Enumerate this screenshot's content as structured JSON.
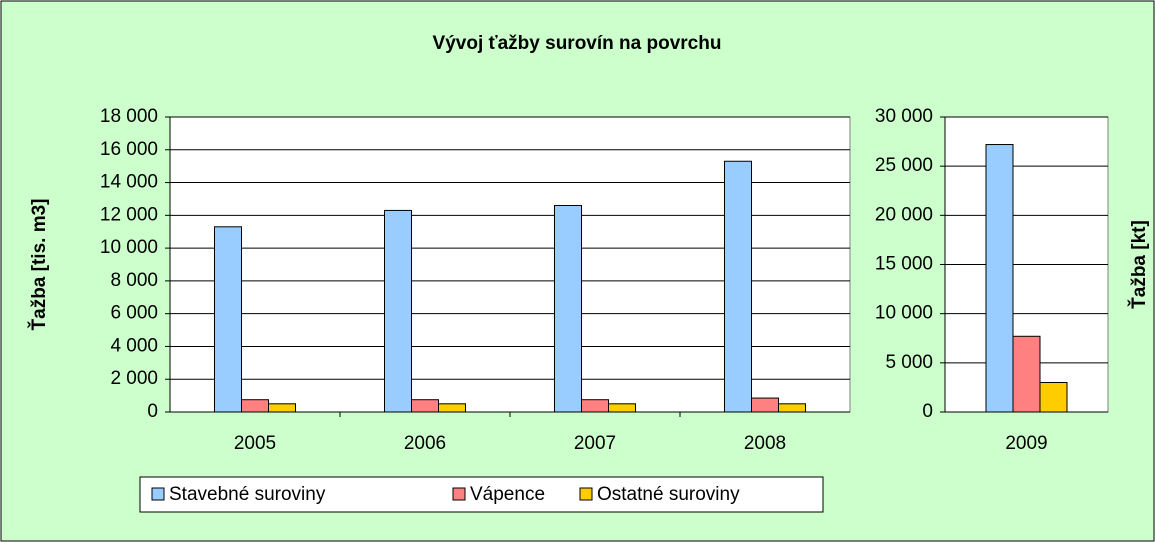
{
  "chart_data": [
    {
      "type": "bar",
      "title": "Vývoj ťažby surovín na povrchu",
      "ylabel": "Ťažba [tis. m3]",
      "categories": [
        "2005",
        "2006",
        "2007",
        "2008"
      ],
      "series": [
        {
          "name": "Stavebné suroviny",
          "color": "#99ccff",
          "values": [
            11300,
            12300,
            12600,
            15300
          ]
        },
        {
          "name": "Vápence",
          "color": "#ff8080",
          "values": [
            750,
            750,
            750,
            850
          ]
        },
        {
          "name": "Ostatné suroviny",
          "color": "#ffcc00",
          "values": [
            500,
            500,
            500,
            500
          ]
        }
      ],
      "ylim": [
        0,
        18000
      ],
      "yticks": [
        0,
        {
          "value": 2000,
          "label": "2 000"
        },
        {
          "value": 4000,
          "label": "4 000"
        },
        {
          "value": 6000,
          "label": "6 000"
        },
        {
          "value": 8000,
          "label": "8 000"
        },
        {
          "value": 10000,
          "label": "10 000"
        },
        {
          "value": 12000,
          "label": "12 000"
        },
        {
          "value": 14000,
          "label": "14 000"
        },
        {
          "value": 16000,
          "label": "16 000"
        },
        {
          "value": 18000,
          "label": "18 000"
        }
      ],
      "grid": true,
      "legend": "bottom"
    },
    {
      "type": "bar",
      "ylabel": "Ťažba [kt]",
      "categories": [
        "2009"
      ],
      "series": [
        {
          "color": "#99ccff",
          "values": [
            27200
          ]
        },
        {
          "color": "#ff8080",
          "values": [
            7700
          ]
        },
        {
          "color": "#ffcc00",
          "values": [
            3000
          ]
        }
      ],
      "ylim": [
        0,
        30000
      ],
      "yticks": [
        0,
        {
          "value": 5000,
          "label": "5 000"
        },
        {
          "value": 10000,
          "label": "10 000"
        },
        {
          "value": 15000,
          "label": "15 000"
        },
        {
          "value": 20000,
          "label": "20 000"
        },
        {
          "value": 25000,
          "label": "25 000"
        },
        {
          "value": 30000,
          "label": "30 000"
        }
      ],
      "grid": true
    }
  ]
}
